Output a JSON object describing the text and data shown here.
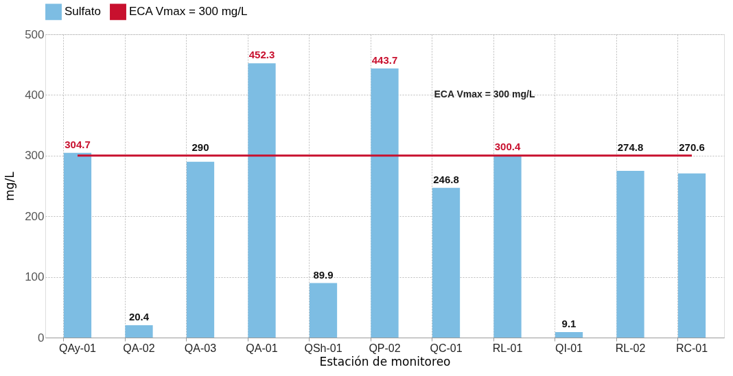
{
  "chart_data": {
    "type": "bar",
    "xlabel": "Estación de monitoreo",
    "ylabel": "mg/L",
    "categories": [
      "QAy-01",
      "QA-02",
      "QA-03",
      "QA-01",
      "QSh-01",
      "QP-02",
      "QC-01",
      "RL-01",
      "QI-01",
      "RL-02",
      "RC-01"
    ],
    "series": [
      {
        "name": "Sulfato",
        "color": "#7dbde3",
        "values": [
          304.7,
          20.4,
          290,
          452.3,
          89.9,
          443.7,
          246.8,
          300.4,
          9.1,
          274.8,
          270.6
        ]
      }
    ],
    "data_labels": true,
    "ylim": [
      0,
      500
    ],
    "yticks": [
      0,
      100,
      200,
      300,
      400,
      500
    ],
    "grid": true,
    "legend": "top",
    "ref_lines": [
      {
        "axis": "y",
        "value": 300,
        "label": "ECA Vmax = 300 mg/L",
        "color": "#c8102e"
      }
    ],
    "annotations": [
      "ECA Vmax = 300 mg/L"
    ]
  }
}
